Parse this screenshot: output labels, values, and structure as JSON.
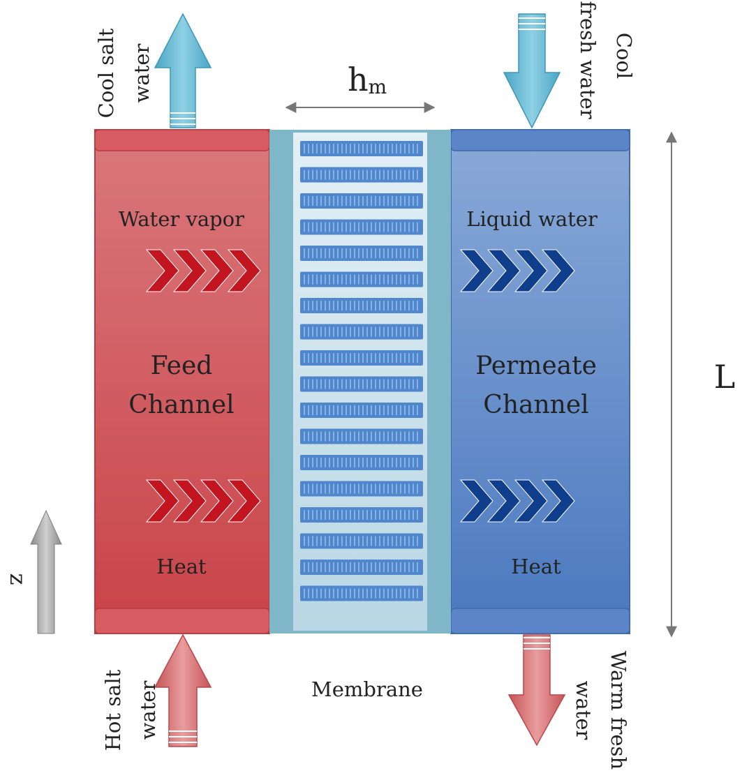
{
  "title_symbol": {
    "main": "h",
    "sub": "m"
  },
  "length_label": "L",
  "axis_label": "z",
  "feed": {
    "title_line1": "Feed",
    "title_line2": "Channel",
    "top_label": "Water vapor",
    "bottom_label": "Heat",
    "outlet_line1": "Cool salt",
    "outlet_line2": "water",
    "inlet_line1": "Hot salt",
    "inlet_line2": "water"
  },
  "permeate": {
    "title_line1": "Permeate",
    "title_line2": "Channel",
    "top_label": "Liquid water",
    "bottom_label": "Heat",
    "inlet_line1": "Cool",
    "inlet_line2": "fresh water",
    "outlet_line1": "Warm fresh",
    "outlet_line2": "water"
  },
  "membrane_label": "Membrane",
  "colors": {
    "feed_top": "#d9787c",
    "feed_bottom": "#c94348",
    "permeate_top": "#8aaad8",
    "permeate_bottom": "#4a78bf",
    "feed_chevron": "#c2151f",
    "permeate_chevron": "#0f3f8c",
    "membrane_frame": "#7fb6c8",
    "membrane_pore": "#4f86cc",
    "arrow_cool": "#5fb4cf",
    "arrow_warm": "#d06a6c",
    "axis_arrow": "#9a9a9a"
  }
}
